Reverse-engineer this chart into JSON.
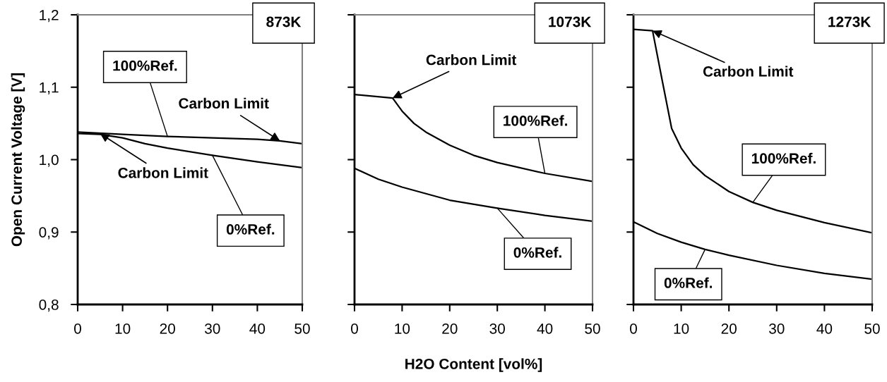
{
  "chart_data": [
    {
      "type": "line",
      "title": "873K",
      "ylabel": "Open Current Voltage [V]",
      "xlim": [
        0,
        50
      ],
      "xticks": [
        0,
        10,
        20,
        30,
        40,
        50
      ],
      "ylim": [
        0.8,
        1.2
      ],
      "yticks": [
        {
          "value": 0.8,
          "label": "0,8"
        },
        {
          "value": 0.9,
          "label": "0,9"
        },
        {
          "value": 1.0,
          "label": "1,0"
        },
        {
          "value": 1.1,
          "label": "1,1"
        },
        {
          "value": 1.2,
          "label": "1,2"
        }
      ],
      "grid": false,
      "marker": "none",
      "line_style": "solid",
      "annotations": [
        {
          "text": "Carbon Limit",
          "x": 45,
          "y": 1.026
        },
        {
          "text": "Carbon Limit",
          "x": 5,
          "y": 1.036
        }
      ],
      "series": [
        {
          "name": "100%Ref.",
          "color": "#000000",
          "x": [
            0,
            10,
            20,
            30,
            40,
            45,
            50
          ],
          "values": [
            1.038,
            1.035,
            1.032,
            1.03,
            1.028,
            1.026,
            1.022
          ]
        },
        {
          "name": "0%Ref.",
          "color": "#000000",
          "x": [
            0,
            5,
            10,
            15,
            20,
            30,
            40,
            50
          ],
          "values": [
            1.036,
            1.035,
            1.03,
            1.022,
            1.016,
            1.006,
            0.997,
            0.989
          ]
        }
      ]
    },
    {
      "type": "line",
      "title": "1073K",
      "xlabel": "H2O Content [vol%]",
      "xlim": [
        0,
        50
      ],
      "xticks": [
        0,
        10,
        20,
        30,
        40,
        50
      ],
      "ylim": [
        0.8,
        1.2
      ],
      "yticks": [
        {
          "value": 0.8,
          "label": null
        },
        {
          "value": 0.9,
          "label": null
        },
        {
          "value": 1.0,
          "label": null
        },
        {
          "value": 1.1,
          "label": null
        },
        {
          "value": 1.2,
          "label": null
        }
      ],
      "tick_labels": "x",
      "grid": false,
      "marker": "none",
      "line_style": "solid",
      "annotations": [
        {
          "text": "Carbon Limit",
          "x": 8,
          "y": 1.085
        }
      ],
      "series": [
        {
          "name": "100%Ref.",
          "color": "#000000",
          "x": [
            0,
            8,
            10,
            12.5,
            15,
            20,
            25,
            30,
            40,
            50
          ],
          "values": [
            1.09,
            1.085,
            1.067,
            1.05,
            1.038,
            1.02,
            1.006,
            0.996,
            0.981,
            0.97
          ]
        },
        {
          "name": "0%Ref.",
          "color": "#000000",
          "x": [
            0,
            5,
            10,
            20,
            30,
            40,
            50
          ],
          "values": [
            0.988,
            0.973,
            0.962,
            0.944,
            0.933,
            0.923,
            0.915
          ]
        }
      ]
    },
    {
      "type": "line",
      "title": "1273K",
      "xlim": [
        0,
        50
      ],
      "xticks": [
        0,
        10,
        20,
        30,
        40,
        50
      ],
      "ylim": [
        0.8,
        1.2
      ],
      "yticks": [
        {
          "value": 0.8,
          "label": null
        },
        {
          "value": 0.9,
          "label": null
        },
        {
          "value": 1.0,
          "label": null
        },
        {
          "value": 1.1,
          "label": null
        },
        {
          "value": 1.2,
          "label": null
        }
      ],
      "tick_labels": "x",
      "grid": false,
      "marker": "none",
      "line_style": "solid",
      "annotations": [
        {
          "text": "Carbon Limit",
          "x": 4,
          "y": 1.178
        }
      ],
      "series": [
        {
          "name": "100%Ref.",
          "color": "#000000",
          "x": [
            0,
            4,
            6,
            8,
            10,
            12.5,
            15,
            20,
            25,
            30,
            40,
            50
          ],
          "values": [
            1.18,
            1.178,
            1.11,
            1.043,
            1.016,
            0.993,
            0.978,
            0.956,
            0.941,
            0.93,
            0.913,
            0.899
          ]
        },
        {
          "name": "0%Ref.",
          "color": "#000000",
          "x": [
            0,
            5,
            10,
            15,
            20,
            30,
            40,
            50
          ],
          "values": [
            0.914,
            0.898,
            0.886,
            0.876,
            0.868,
            0.854,
            0.843,
            0.835
          ]
        }
      ]
    }
  ]
}
